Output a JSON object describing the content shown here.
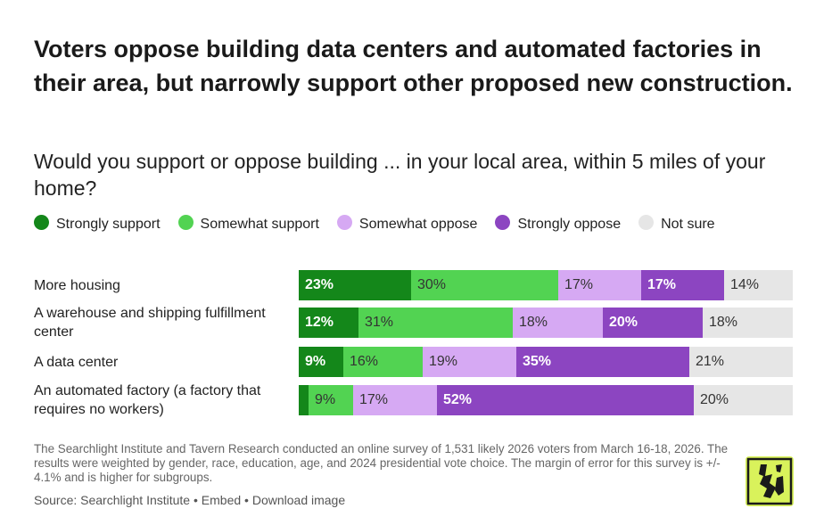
{
  "title": "Voters oppose building data centers and automated factories in their area, but narrowly support other proposed new construction.",
  "subtitle": "Would you support or oppose building ... in your local area, within 5 miles of your home?",
  "colors": {
    "strongly_support": "#14871a",
    "somewhat_support": "#52d352",
    "somewhat_oppose": "#d6a9f3",
    "strongly_oppose": "#8c45c1",
    "not_sure": "#e6e6e6"
  },
  "chart_data": {
    "type": "bar",
    "orientation": "horizontal",
    "stacked": true,
    "categories": [
      "More housing",
      "A warehouse and shipping fulfillment center",
      "A data center",
      "An automated factory (a factory that requires no workers)"
    ],
    "series": [
      {
        "name": "Strongly support",
        "values": [
          23,
          12,
          9,
          2
        ]
      },
      {
        "name": "Somewhat support",
        "values": [
          30,
          31,
          16,
          9
        ]
      },
      {
        "name": "Somewhat oppose",
        "values": [
          17,
          18,
          19,
          17
        ]
      },
      {
        "name": "Strongly oppose",
        "values": [
          17,
          20,
          35,
          52
        ]
      },
      {
        "name": "Not sure",
        "values": [
          14,
          18,
          21,
          20
        ]
      }
    ],
    "data_labels": [
      [
        "23%",
        "30%",
        "17%",
        "17%",
        "14%"
      ],
      [
        "12%",
        "31%",
        "18%",
        "20%",
        "18%"
      ],
      [
        "9%",
        "16%",
        "19%",
        "35%",
        "21%"
      ],
      [
        "",
        "9%",
        "17%",
        "52%",
        "20%"
      ]
    ],
    "legend_position": "top",
    "grid": false
  },
  "footnote": "The Searchlight Institute and Tavern Research conducted an online survey of 1,531 likely 2026 voters from March 16-18, 2026. The results were weighted by gender, race, education, age, and 2024 presidential vote choice. The margin of error for this survey is +/- 4.1% and is higher for subgroups.",
  "source": {
    "text": "Source: Searchlight Institute",
    "separator": " • ",
    "embed": "Embed",
    "download": "Download image"
  }
}
